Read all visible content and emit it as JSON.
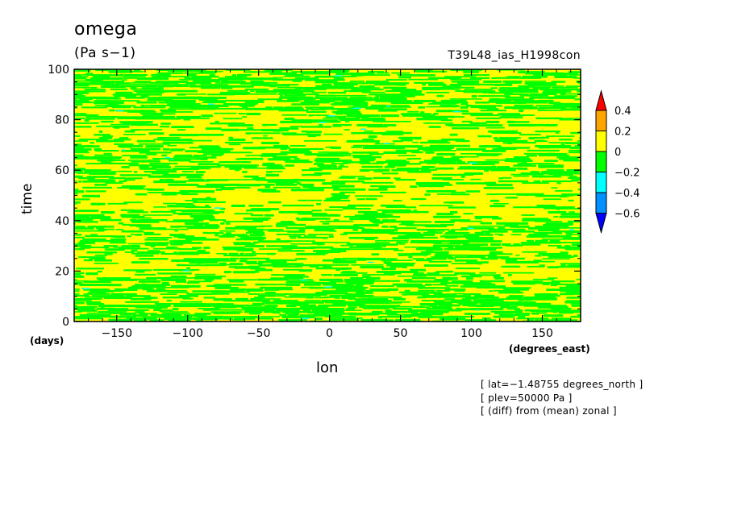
{
  "chart_data": {
    "type": "heatmap",
    "title": "omega",
    "units": "(Pa s−1)",
    "run_name": "T39L48_ias_H1998con",
    "xlabel": "lon",
    "ylabel": "time",
    "x_unit": "(degrees_east)",
    "y_unit": "(days)",
    "xlim": [
      -180,
      177
    ],
    "ylim": [
      0,
      100
    ],
    "x_ticks": [
      -150,
      -100,
      -50,
      0,
      50,
      100,
      150
    ],
    "y_ticks": [
      0,
      20,
      40,
      60,
      80,
      100
    ],
    "x_tick_labels": [
      "−150",
      "−100",
      "−50",
      "0",
      "50",
      "100",
      "150"
    ],
    "y_tick_labels": [
      "0",
      "20",
      "40",
      "60",
      "80",
      "100"
    ],
    "colorbar": {
      "levels": [
        0.4,
        0.2,
        0,
        -0.2,
        -0.4,
        -0.6
      ],
      "level_labels": [
        "0.4",
        "0.2",
        "0",
        "−0.2",
        "−0.4",
        "−0.6"
      ],
      "bins": [
        {
          "range": "> 0.4",
          "color": "#ff0000"
        },
        {
          "range": "0.2 – 0.4",
          "color": "#ffa500"
        },
        {
          "range": "0 – 0.2",
          "color": "#ffff00"
        },
        {
          "range": "−0.2 – 0",
          "color": "#00ff00"
        },
        {
          "range": "−0.4 – −0.2",
          "color": "#00ffff"
        },
        {
          "range": "−0.6 – −0.4",
          "color": "#0090ff"
        },
        {
          "range": "< −0.6",
          "color": "#0000ff"
        }
      ]
    },
    "dominant_fields": [
      "0 – 0.2",
      "−0.2 – 0"
    ],
    "notes": [
      "[ lat=−1.48755 degrees_north ]",
      "[ plev=50000 Pa ]",
      "[ (diff) from (mean) zonal ]"
    ]
  }
}
